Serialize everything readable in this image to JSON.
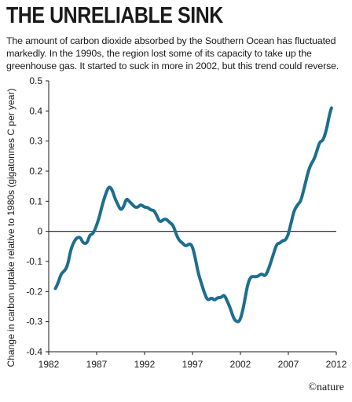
{
  "chart_data": {
    "type": "line",
    "title": "THE UNRELIABLE SINK",
    "subtitle": "The amount of carbon dioxide absorbed by the Southern Ocean has fluctuated markedly. In the 1990s, the region lost some of its capacity to take up the greenhouse gas. It started to suck in more in 2002, but this trend could reverse.",
    "xlabel": "",
    "ylabel": "Change in carbon uptake relative to 1980s (gigatonnes C per year)",
    "xlim": [
      1982,
      2012
    ],
    "ylim": [
      -0.4,
      0.5
    ],
    "x_ticks": [
      "1982",
      "1987",
      "1992",
      "1997",
      "2002",
      "2007",
      "2012"
    ],
    "y_ticks": [
      "0.5",
      "0.4",
      "0.3",
      "0.2",
      "0.1",
      "0",
      "-0.1",
      "-0.2",
      "-0.3",
      "-0.4"
    ],
    "zero_line": true,
    "grid": false,
    "colors": {
      "line": "#1d6e8e",
      "zero_line": "#1a1a1a"
    },
    "series": [
      {
        "x": [
          1982.7,
          1983.0,
          1983.3,
          1983.7,
          1984.0,
          1984.3,
          1984.7,
          1985.0,
          1985.3,
          1985.6,
          1986.0,
          1986.3,
          1986.6,
          1987.0,
          1987.3,
          1987.6,
          1988.0,
          1988.3,
          1988.6,
          1988.9,
          1989.2,
          1989.5,
          1989.8,
          1990.1,
          1990.4,
          1990.7,
          1991.0,
          1991.3,
          1991.6,
          1992.0,
          1992.3,
          1992.7,
          1993.0,
          1993.3,
          1993.6,
          1994.0,
          1994.3,
          1994.6,
          1995.0,
          1995.3,
          1995.6,
          1996.0,
          1996.3,
          1996.7,
          1997.0,
          1997.3,
          1997.6,
          1998.0,
          1998.3,
          1998.6,
          1999.0,
          1999.3,
          1999.6,
          2000.0,
          2000.3,
          2000.6,
          2001.0,
          2001.3,
          2001.6,
          2001.9,
          2002.2,
          2002.5,
          2002.8,
          2003.1,
          2003.4,
          2003.8,
          2004.2,
          2004.6,
          2005.0,
          2005.4,
          2005.8,
          2006.1,
          2006.4,
          2006.7,
          2007.0,
          2007.3,
          2007.6,
          2008.0,
          2008.3,
          2008.7,
          2009.0,
          2009.3,
          2009.7,
          2010.0,
          2010.3,
          2010.6,
          2011.0,
          2011.3,
          2011.5
        ],
        "y": [
          -0.19,
          -0.17,
          -0.14,
          -0.13,
          -0.11,
          -0.06,
          -0.03,
          -0.02,
          -0.02,
          -0.04,
          -0.04,
          -0.01,
          -0.01,
          0.02,
          0.05,
          0.09,
          0.13,
          0.15,
          0.14,
          0.11,
          0.09,
          0.07,
          0.08,
          0.11,
          0.1,
          0.09,
          0.08,
          0.08,
          0.09,
          0.08,
          0.08,
          0.07,
          0.07,
          0.05,
          0.03,
          0.04,
          0.04,
          0.03,
          0.02,
          -0.01,
          -0.03,
          -0.04,
          -0.05,
          -0.04,
          -0.05,
          -0.09,
          -0.14,
          -0.18,
          -0.21,
          -0.23,
          -0.22,
          -0.23,
          -0.22,
          -0.22,
          -0.21,
          -0.23,
          -0.26,
          -0.29,
          -0.3,
          -0.3,
          -0.27,
          -0.22,
          -0.17,
          -0.15,
          -0.15,
          -0.15,
          -0.14,
          -0.15,
          -0.12,
          -0.08,
          -0.04,
          -0.04,
          -0.03,
          -0.03,
          -0.01,
          0.03,
          0.07,
          0.09,
          0.1,
          0.15,
          0.19,
          0.22,
          0.24,
          0.27,
          0.3,
          0.3,
          0.34,
          0.39,
          0.41
        ]
      }
    ]
  },
  "credit": "©nature"
}
